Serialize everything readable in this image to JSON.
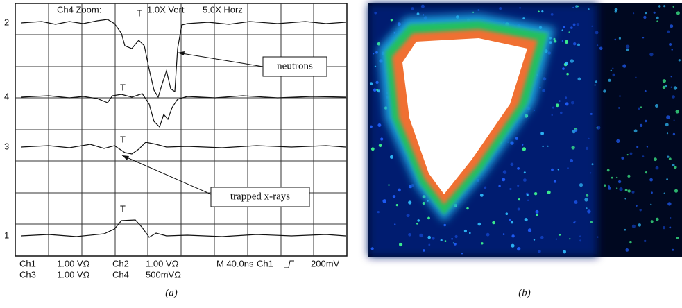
{
  "scope": {
    "zoom": [
      "Ch4 Zoom:",
      "1.0X Vert",
      "5.0X Horz"
    ],
    "channel_markers": [
      "2",
      "4",
      "3",
      "1"
    ],
    "trigger_markers": [
      "T",
      "T",
      "T",
      "T"
    ],
    "annotations": [
      "neutrons",
      "trapped x-rays"
    ],
    "settings_row1": [
      "Ch1",
      "1.00 VΩ",
      "Ch2",
      "1.00 VΩ",
      "M 40.0ns",
      "Ch1",
      "200mV"
    ],
    "settings_row2": [
      "Ch3",
      "1.00 VΩ",
      "Ch4",
      "500mVΩ"
    ]
  },
  "captions": [
    "(a)",
    "(b)"
  ]
}
